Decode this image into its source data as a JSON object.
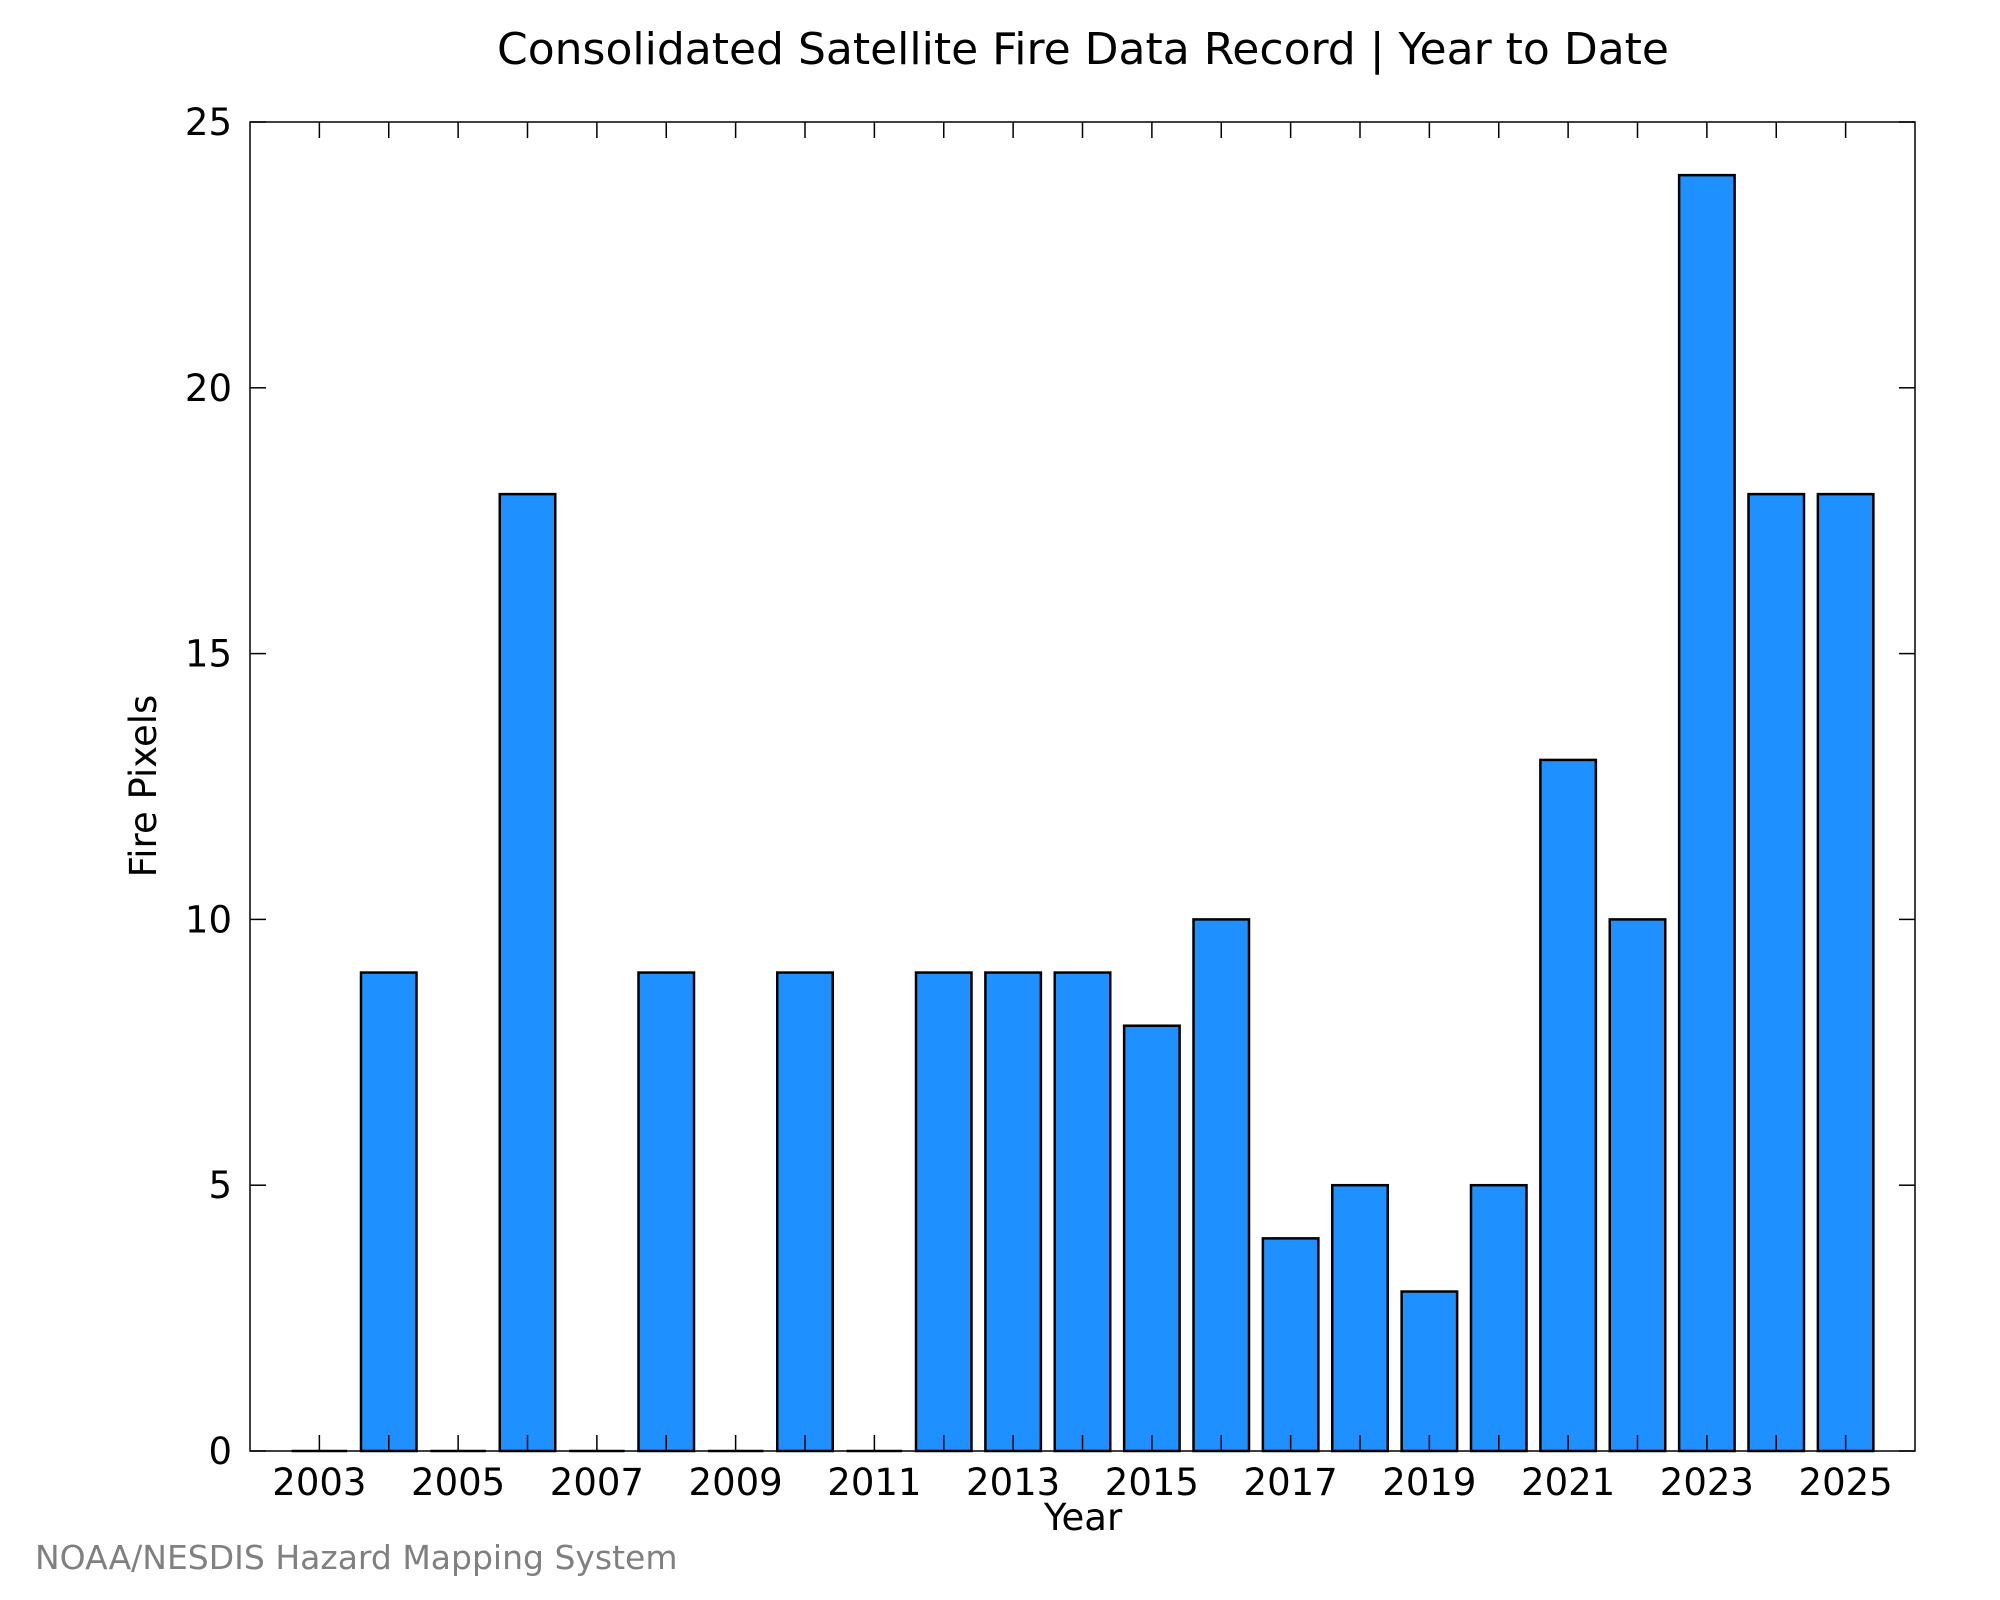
{
  "chart_data": {
    "type": "bar",
    "title": "Consolidated Satellite Fire Data Record | Year to Date",
    "xlabel": "Year",
    "ylabel": "Fire Pixels",
    "categories": [
      2003,
      2004,
      2005,
      2006,
      2007,
      2008,
      2009,
      2010,
      2011,
      2012,
      2013,
      2014,
      2015,
      2016,
      2017,
      2018,
      2019,
      2020,
      2021,
      2022,
      2023,
      2024,
      2025
    ],
    "values": [
      0,
      9,
      0,
      18,
      0,
      9,
      0,
      9,
      0,
      9,
      9,
      9,
      8,
      10,
      4,
      5,
      3,
      5,
      13,
      10,
      24,
      18,
      18
    ],
    "ylim": [
      0,
      25
    ],
    "xlim": [
      2002,
      2026
    ],
    "yticks": [
      0,
      5,
      10,
      15,
      20,
      25
    ],
    "xtick_labels": [
      "2003",
      "2005",
      "2007",
      "2009",
      "2011",
      "2013",
      "2015",
      "2017",
      "2019",
      "2021",
      "2023",
      "2025"
    ],
    "grid": false,
    "legend": "none",
    "bar_color": "#1E90FF",
    "edge_color": "#000000"
  },
  "footer": {
    "credit": "NOAA/NESDIS Hazard Mapping System"
  }
}
